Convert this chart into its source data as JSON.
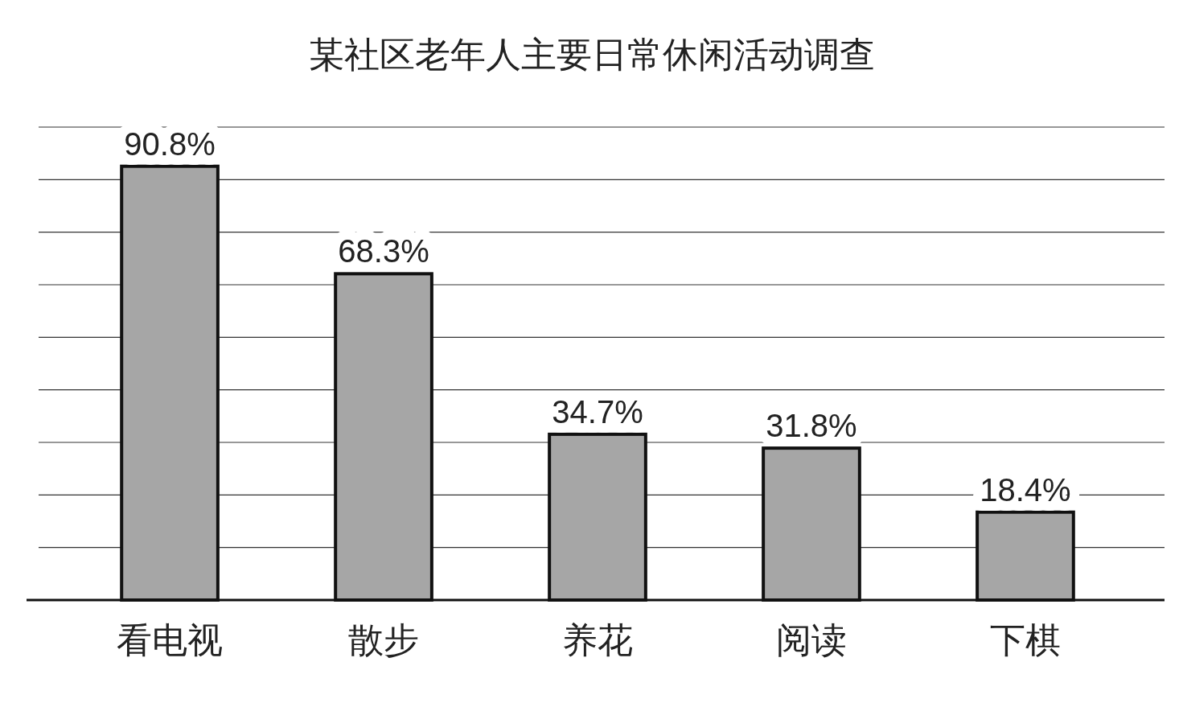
{
  "chart_data": {
    "type": "bar",
    "title": "某社区老年人主要日常休闲活动调查",
    "categories": [
      "看电视",
      "散步",
      "养花",
      "阅读",
      "下棋"
    ],
    "values": [
      90.8,
      68.3,
      34.7,
      31.8,
      18.4
    ],
    "value_labels": [
      "90.8%",
      "68.3%",
      "34.7%",
      "31.8%",
      "18.4%"
    ],
    "color": "#a6a6a6",
    "ylim": [
      0,
      99
    ],
    "yticks": [
      {
        "value": 11,
        "label": null
      },
      {
        "value": 22,
        "label": null
      },
      {
        "value": 33,
        "label": null
      },
      {
        "value": 44,
        "label": null
      },
      {
        "value": 55,
        "label": null
      },
      {
        "value": 66,
        "label": null
      },
      {
        "value": 77,
        "label": null
      },
      {
        "value": 88,
        "label": null
      },
      {
        "value": 99,
        "label": null
      }
    ],
    "grid": "y",
    "tick_labels": "x"
  }
}
